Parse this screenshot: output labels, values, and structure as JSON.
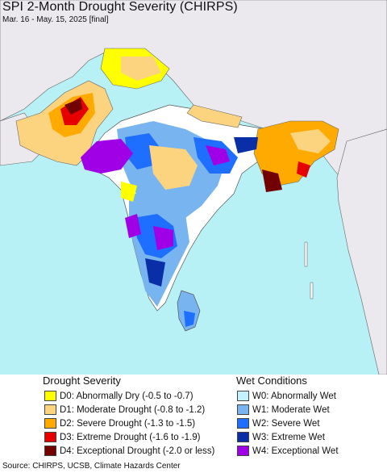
{
  "map": {
    "title": "SPI 2-Month Drought Severity (CHIRPS)",
    "subtitle": "Mar. 16 - May. 15, 2025 [final]",
    "colors": {
      "ocean": "#b7f0f5",
      "land_outside": "#ece9ee",
      "no_change": "#ffffff",
      "border": "#555555"
    }
  },
  "legend": {
    "drought_heading": "Drought Severity",
    "wet_heading": "Wet Conditions",
    "drought_items": [
      {
        "label": "D0: Abnormally Dry (-0.5 to -0.7)",
        "color": "#ffff00"
      },
      {
        "label": "D1: Moderate Drought (-0.8 to -1.2)",
        "color": "#fcd37f"
      },
      {
        "label": "D2: Severe Drought (-1.3 to -1.5)",
        "color": "#ffaa00"
      },
      {
        "label": "D3: Extreme Drought (-1.6 to -1.9)",
        "color": "#e60000"
      },
      {
        "label": "D4: Exceptional Drought (-2.0 or less)",
        "color": "#730000"
      }
    ],
    "wet_items": [
      {
        "label": "W0: Abnormally Wet",
        "color": "#c4f1ff"
      },
      {
        "label": "W1: Moderate Wet",
        "color": "#78b4f0"
      },
      {
        "label": "W2: Severe Wet",
        "color": "#1e6eff"
      },
      {
        "label": "W3: Extreme Wet",
        "color": "#0a2ea6"
      },
      {
        "label": "W4: Exceptional Wet",
        "color": "#a000e6"
      }
    ]
  },
  "source": "Source: CHIRPS, UCSB, Climate Hazards Center"
}
